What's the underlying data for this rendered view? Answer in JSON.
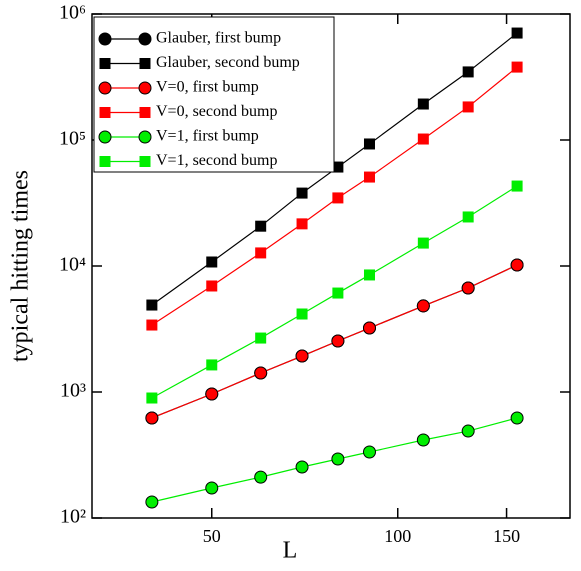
{
  "chart_data": {
    "type": "line",
    "xlabel": "L",
    "ylabel": "typical hitting times",
    "xscale": "log",
    "yscale": "log",
    "xlim": [
      32,
      190
    ],
    "ylim": [
      100,
      1000000
    ],
    "xticks": [
      50,
      100,
      150
    ],
    "yticks": [
      {
        "value": 100,
        "label": "10²"
      },
      {
        "value": 1000,
        "label": "10³"
      },
      {
        "value": 10000,
        "label": "10⁴"
      },
      {
        "value": 100000,
        "label": "10⁵"
      },
      {
        "value": 1000000,
        "label": "10⁶"
      }
    ],
    "legend": "upper left",
    "x": [
      40,
      50,
      60,
      70,
      80,
      90,
      110,
      130,
      156
    ],
    "series": [
      {
        "name": "Glauber, first bump",
        "color": "#000000",
        "marker": "circle",
        "values": [
          622,
          964,
          1415,
          1930,
          2540,
          3220,
          4820,
          6690,
          10190
        ]
      },
      {
        "name": "Glauber, second bump",
        "color": "#000000",
        "marker": "square",
        "values": [
          4900,
          10760,
          20700,
          37900,
          61000,
          93000,
          193000,
          347000,
          706000
        ]
      },
      {
        "name": "V=0, first bump",
        "color": "#ff0000",
        "marker": "circle",
        "values": [
          622,
          964,
          1415,
          1930,
          2540,
          3220,
          4820,
          6690,
          10190
        ]
      },
      {
        "name": "V=0, second bump",
        "color": "#ff0000",
        "marker": "square",
        "values": [
          3400,
          6940,
          12700,
          21600,
          34700,
          50800,
          101800,
          183000,
          379000
        ]
      },
      {
        "name": "V=1, first bump",
        "color": "#00ee00",
        "marker": "circle",
        "values": [
          134,
          173,
          211,
          254,
          294,
          334,
          416,
          490,
          622
        ]
      },
      {
        "name": "V=1, second bump",
        "color": "#00ee00",
        "marker": "square",
        "values": [
          896,
          1640,
          2680,
          4160,
          6100,
          8490,
          15200,
          24500,
          43100
        ]
      }
    ]
  }
}
